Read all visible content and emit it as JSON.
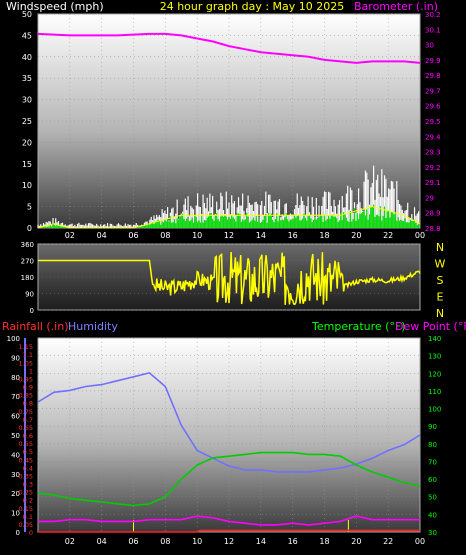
{
  "header": {
    "wind_label": "Windspeed (mph)",
    "date_label": "24 hour graph day : May 10 2025",
    "baro_label": "Barometer (.in)"
  },
  "labels": {
    "rain": "Rainfall (.in)",
    "humidity": "Humidity",
    "temperature": "Temperature (°F)",
    "dewpoint": "Dew Point (°F)"
  },
  "compass": [
    "N",
    "W",
    "S",
    "E",
    "N"
  ],
  "colors": {
    "wind_gust": "#ffffff",
    "wind_avg": "#00dd00",
    "wind_trend": "#ffff00",
    "barometer": "#ff00ff",
    "direction": "#ffff00",
    "rain": "#ff2020",
    "humidity": "#7070ff",
    "temperature": "#00cc00",
    "dewpoint": "#ff00ff",
    "label_white": "#ffffff",
    "label_yellow": "#ffff00",
    "label_green": "#00ff00",
    "label_blue": "#8080ff",
    "label_red": "#ff3030"
  },
  "chart_data": [
    {
      "type": "line",
      "id": "wind_baro",
      "x_ticks": [
        "02",
        "04",
        "06",
        "08",
        "10",
        "12",
        "14",
        "16",
        "18",
        "20",
        "22",
        "00"
      ],
      "y_left": {
        "label": "Windspeed (mph)",
        "ticks": [
          0,
          5,
          10,
          15,
          20,
          25,
          30,
          35,
          40,
          45,
          50
        ],
        "range": [
          0,
          50
        ]
      },
      "y_right": {
        "label": "Barometer (.in)",
        "ticks": [
          "28.8",
          "28.9",
          "29",
          "29.1",
          "29.2",
          "29.3",
          "29.4",
          "29.5",
          "29.6",
          "29.7",
          "29.8",
          "29.9",
          "30",
          "30.1",
          "30.2"
        ],
        "range": [
          28.8,
          30.2
        ]
      },
      "series": [
        {
          "name": "Barometer",
          "axis": "right",
          "x": [
            0,
            1,
            2,
            3,
            4,
            5,
            6,
            7,
            8,
            9,
            10,
            11,
            12,
            13,
            14,
            15,
            16,
            17,
            18,
            19,
            20,
            21,
            22,
            23,
            24
          ],
          "values": [
            30.07,
            30.065,
            30.06,
            30.06,
            30.06,
            30.06,
            30.065,
            30.07,
            30.07,
            30.06,
            30.04,
            30.02,
            29.99,
            29.97,
            29.95,
            29.94,
            29.93,
            29.92,
            29.9,
            29.89,
            29.88,
            29.89,
            29.89,
            29.89,
            29.88
          ]
        }
      ],
      "wind_envelope": {
        "x": [
          0,
          1,
          2,
          3,
          4,
          5,
          6,
          7,
          8,
          9,
          10,
          11,
          12,
          13,
          14,
          15,
          16,
          17,
          18,
          19,
          20,
          21,
          22,
          23,
          24
        ],
        "gust": [
          1,
          2,
          1,
          1,
          1,
          1,
          1,
          2,
          4,
          6,
          7,
          7,
          7,
          7,
          7,
          7,
          7,
          7,
          7,
          8,
          10,
          12,
          11,
          7,
          3
        ],
        "avg": [
          0,
          1,
          0,
          0,
          0,
          0,
          0,
          1,
          2,
          3,
          3,
          3,
          3,
          3,
          3,
          3,
          3,
          3,
          3,
          3,
          4,
          5,
          4,
          3,
          1
        ]
      }
    },
    {
      "type": "line",
      "id": "wind_direction",
      "x_ticks": [
        "02",
        "04",
        "06",
        "08",
        "10",
        "12",
        "14",
        "16",
        "18",
        "20",
        "22",
        "00"
      ],
      "y_left": {
        "ticks": [
          0,
          90,
          180,
          270,
          360
        ],
        "range": [
          0,
          360
        ]
      },
      "series": [
        {
          "name": "Direction",
          "x": [
            0,
            1,
            2,
            3,
            4,
            5,
            6,
            7,
            7.2,
            8,
            9,
            10,
            11,
            12,
            13,
            14,
            15,
            16,
            17,
            18,
            19,
            19.3,
            20,
            21,
            22,
            23,
            24
          ],
          "values": [
            270,
            270,
            270,
            270,
            270,
            270,
            270,
            270,
            140,
            120,
            130,
            170,
            150,
            180,
            160,
            170,
            180,
            150,
            200,
            160,
            170,
            130,
            155,
            165,
            160,
            175,
            210
          ]
        }
      ]
    },
    {
      "type": "line",
      "id": "temp_hum_rain",
      "x_ticks": [
        "02",
        "04",
        "06",
        "08",
        "10",
        "12",
        "14",
        "16",
        "18",
        "20",
        "22",
        "00"
      ],
      "y_left_rain": {
        "label": "Rainfall (.in)",
        "ticks": [
          "0",
          "0.05",
          "0.1",
          "0.15",
          "0.2",
          "0.25",
          "0.3",
          "0.35",
          "0.4",
          "0.45",
          "0.5",
          "0.55",
          "0.6",
          "0.65",
          "0.7",
          "0.75",
          "0.8",
          "0.85",
          "0.9",
          "0.95",
          "1",
          "1.05",
          "1.1",
          "1.15"
        ],
        "range": [
          0,
          1.2
        ]
      },
      "y_left_humidity": {
        "label": "Humidity",
        "ticks": [
          0,
          10,
          20,
          30,
          40,
          50,
          60,
          70,
          80,
          90,
          100
        ],
        "range": [
          0,
          100
        ]
      },
      "y_right": {
        "label": "Temperature (°F) / Dew Point (°F)",
        "ticks": [
          30,
          40,
          50,
          60,
          70,
          80,
          90,
          100,
          110,
          120,
          130,
          140
        ],
        "range": [
          30,
          140
        ]
      },
      "series": [
        {
          "name": "Humidity",
          "axis": "humidity",
          "x": [
            0,
            1,
            2,
            3,
            4,
            5,
            6,
            7,
            8,
            9,
            10,
            11,
            12,
            13,
            14,
            15,
            16,
            17,
            18,
            19,
            20,
            21,
            22,
            23,
            24
          ],
          "values": [
            67,
            72,
            73,
            75,
            76,
            78,
            80,
            82,
            75,
            55,
            42,
            38,
            34,
            32,
            32,
            31,
            31,
            31,
            32,
            33,
            35,
            38,
            42,
            45,
            50
          ]
        },
        {
          "name": "Temperature",
          "axis": "right",
          "x": [
            0,
            1,
            2,
            3,
            4,
            5,
            6,
            7,
            8,
            9,
            10,
            11,
            12,
            13,
            14,
            15,
            16,
            17,
            18,
            19,
            20,
            21,
            22,
            23,
            24
          ],
          "values": [
            52,
            51,
            49,
            48,
            47,
            46,
            45,
            46,
            50,
            60,
            68,
            72,
            73,
            74,
            75,
            75,
            75,
            74,
            74,
            73,
            68,
            64,
            61,
            58,
            56
          ]
        },
        {
          "name": "Dew Point",
          "axis": "right",
          "x": [
            0,
            1,
            2,
            3,
            4,
            5,
            6,
            7,
            8,
            9,
            10,
            11,
            12,
            13,
            14,
            15,
            16,
            17,
            18,
            19,
            20,
            21,
            22,
            23,
            24
          ],
          "values": [
            36,
            36,
            37,
            37,
            36,
            36,
            36,
            37,
            37,
            37,
            39,
            38,
            36,
            35,
            34,
            34,
            35,
            34,
            35,
            36,
            39,
            37,
            37,
            37,
            37
          ]
        },
        {
          "name": "Rainfall",
          "axis": "rain",
          "x": [
            0,
            10,
            10.2,
            24
          ],
          "values": [
            0,
            0,
            0.01,
            0.01
          ]
        }
      ]
    }
  ]
}
